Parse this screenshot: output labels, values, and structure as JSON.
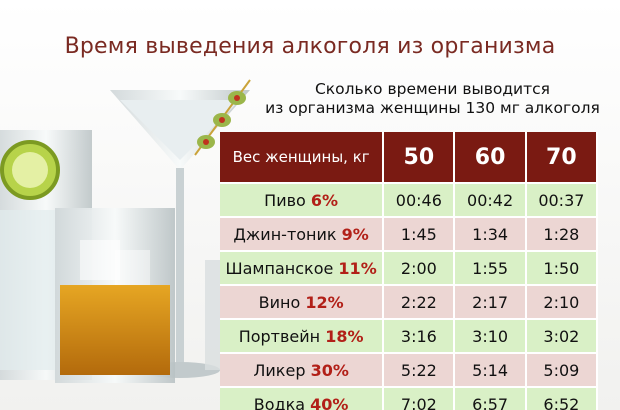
{
  "title": "Время выведения алкоголя из организма",
  "subtitle": {
    "line1": "Сколько времени выводится",
    "line2": "из организма женщины 130 мг алкоголя"
  },
  "table": {
    "header_label": "Вес женщины, кг",
    "weights": [
      "50",
      "60",
      "70"
    ],
    "rows": [
      {
        "drink": "Пиво",
        "pct": "6%",
        "times": [
          "00:46",
          "00:42",
          "00:37"
        ],
        "tone": "green"
      },
      {
        "drink": "Джин-тоник",
        "pct": "9%",
        "times": [
          "1:45",
          "1:34",
          "1:28"
        ],
        "tone": "pink"
      },
      {
        "drink": "Шампанское",
        "pct": "11%",
        "times": [
          "2:00",
          "1:55",
          "1:50"
        ],
        "tone": "green"
      },
      {
        "drink": "Вино",
        "pct": "12%",
        "times": [
          "2:22",
          "2:17",
          "2:10"
        ],
        "tone": "pink"
      },
      {
        "drink": "Портвейн",
        "pct": "18%",
        "times": [
          "3:16",
          "3:10",
          "3:02"
        ],
        "tone": "green"
      },
      {
        "drink": "Ликер",
        "pct": "30%",
        "times": [
          "5:22",
          "5:14",
          "5:09"
        ],
        "tone": "pink"
      },
      {
        "drink": "Водка",
        "pct": "40%",
        "times": [
          "7:02",
          "6:57",
          "6:52"
        ],
        "tone": "green"
      }
    ]
  },
  "colors": {
    "title": "#7a2a22",
    "header_bg": "#7a1a12",
    "row_green": "#d9f0c6",
    "row_pink": "#ecd6d3",
    "percent": "#b22018"
  }
}
